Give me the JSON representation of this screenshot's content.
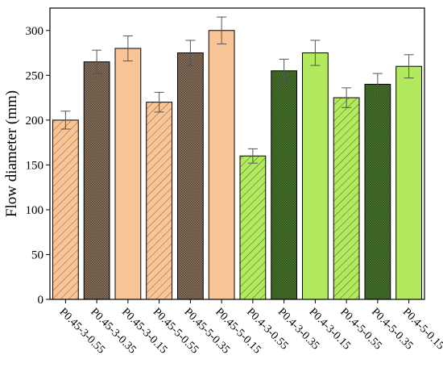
{
  "chart_data": {
    "type": "bar",
    "title": "",
    "xlabel": "",
    "ylabel": "Flow diameter (mm)",
    "ylim": [
      0,
      325
    ],
    "yticks": [
      0,
      50,
      100,
      150,
      200,
      250,
      300
    ],
    "grid": false,
    "legend": "none",
    "categories": [
      "P0.45-3-0.55",
      "P0.45-3-0.35",
      "P0.45-3-0.15",
      "P0.45-5-0.55",
      "P0.45-5-0.35",
      "P0.45-5-0.15",
      "P0.4-3-0.55",
      "P0.4-3-0.35",
      "P0.4-3-0.15",
      "P0.4-5-0.55",
      "P0.4-5-0.35",
      "P0.4-5-0.15"
    ],
    "values": [
      200,
      265,
      280,
      220,
      275,
      300,
      160,
      255,
      275,
      225,
      240,
      260
    ],
    "errors": [
      10,
      13,
      14,
      11,
      14,
      15,
      8,
      13,
      14,
      11,
      12,
      13
    ],
    "bar_styles": [
      "hatch",
      "crosshatch",
      "solid",
      "hatch",
      "crosshatch",
      "solid",
      "hatch",
      "crosshatch",
      "solid",
      "hatch",
      "crosshatch",
      "solid"
    ],
    "colors": {
      "orange_solid": "#F9C597",
      "orange_hatch_bg": "#F9C597",
      "orange_hatch_line": "#8A5A3A",
      "orange_cross": "#8E7562",
      "green_solid": "#B2E95E",
      "green_hatch_bg": "#B2E95E",
      "green_hatch_line": "#3E6B1A",
      "green_cross": "#4B7A2F",
      "bar_stroke": "#000000",
      "error_bar": "#555555"
    },
    "bar_color_groups": [
      "orange",
      "orange",
      "orange",
      "orange",
      "orange",
      "orange",
      "green",
      "green",
      "green",
      "green",
      "green",
      "green"
    ]
  }
}
